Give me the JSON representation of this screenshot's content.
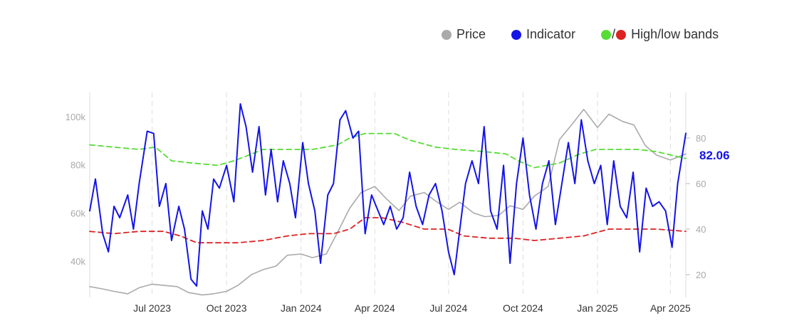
{
  "legend": {
    "price": "Price",
    "indicator": "Indicator",
    "bands_sep": "/",
    "bands": "High/low bands"
  },
  "colors": {
    "price": "#aaaaaa",
    "indicator": "#1414e6",
    "high_band": "#55dd33",
    "low_band": "#dd2222",
    "gridline": "#dddddd"
  },
  "chart_data": {
    "type": "line",
    "grid": "vertical dashed lines at x ticks",
    "legend_position": "top-right",
    "x_range": [
      "2023-04-15",
      "2025-04-20"
    ],
    "x_ticks": [
      {
        "date": "2023-07-01",
        "label": "Jul 2023"
      },
      {
        "date": "2023-10-01",
        "label": "Oct 2023"
      },
      {
        "date": "2024-01-01",
        "label": "Jan 2024"
      },
      {
        "date": "2024-04-01",
        "label": "Apr 2024"
      },
      {
        "date": "2024-07-01",
        "label": "Jul 2024"
      },
      {
        "date": "2024-10-01",
        "label": "Oct 2024"
      },
      {
        "date": "2025-01-01",
        "label": "Jan 2025"
      },
      {
        "date": "2025-04-01",
        "label": "Apr 2025"
      }
    ],
    "y_left": {
      "range": [
        25000,
        110000
      ],
      "ticks": [
        {
          "v": 40000,
          "label": "40k"
        },
        {
          "v": 60000,
          "label": "60k"
        },
        {
          "v": 80000,
          "label": "80k"
        },
        {
          "v": 100000,
          "label": "100k"
        }
      ]
    },
    "y_right": {
      "range": [
        10,
        100
      ],
      "ticks": [
        {
          "v": 20,
          "label": "20"
        },
        {
          "v": 40,
          "label": "40"
        },
        {
          "v": 60,
          "label": "60"
        },
        {
          "v": 80,
          "label": "80"
        }
      ]
    },
    "last_value_label": "82.06",
    "series": [
      {
        "name": "Price",
        "axis": "left",
        "style": "solid",
        "x": [
          "2023-04-15",
          "2023-05-01",
          "2023-05-15",
          "2023-06-01",
          "2023-06-15",
          "2023-07-01",
          "2023-07-15",
          "2023-08-01",
          "2023-08-15",
          "2023-09-01",
          "2023-09-15",
          "2023-10-01",
          "2023-10-15",
          "2023-11-01",
          "2023-11-15",
          "2023-12-01",
          "2023-12-15",
          "2024-01-01",
          "2024-01-15",
          "2024-02-01",
          "2024-02-15",
          "2024-03-01",
          "2024-03-15",
          "2024-04-01",
          "2024-04-15",
          "2024-05-01",
          "2024-05-15",
          "2024-06-01",
          "2024-06-15",
          "2024-07-01",
          "2024-07-15",
          "2024-08-01",
          "2024-08-15",
          "2024-09-01",
          "2024-09-15",
          "2024-10-01",
          "2024-10-15",
          "2024-11-01",
          "2024-11-15",
          "2024-12-01",
          "2024-12-15",
          "2025-01-01",
          "2025-01-15",
          "2025-02-01",
          "2025-02-15",
          "2025-03-01",
          "2025-03-15",
          "2025-04-01",
          "2025-04-20"
        ],
        "values": [
          29500,
          28500,
          27500,
          26500,
          29000,
          30500,
          30000,
          29500,
          27000,
          26000,
          26500,
          27500,
          30000,
          34500,
          36500,
          38000,
          42500,
          43000,
          41500,
          43000,
          52000,
          62000,
          68500,
          71000,
          66000,
          61000,
          67000,
          68500,
          65000,
          61500,
          64500,
          60000,
          58500,
          59000,
          63000,
          61500,
          67000,
          71000,
          90500,
          97000,
          103000,
          95500,
          101000,
          98000,
          96500,
          88000,
          84000,
          82000,
          84500
        ]
      },
      {
        "name": "Indicator",
        "axis": "right",
        "style": "solid",
        "x": [
          "2023-04-15",
          "2023-04-22",
          "2023-05-01",
          "2023-05-08",
          "2023-05-15",
          "2023-05-22",
          "2023-06-01",
          "2023-06-08",
          "2023-06-15",
          "2023-06-25",
          "2023-07-03",
          "2023-07-10",
          "2023-07-18",
          "2023-07-25",
          "2023-08-03",
          "2023-08-10",
          "2023-08-18",
          "2023-08-25",
          "2023-09-01",
          "2023-09-08",
          "2023-09-15",
          "2023-09-22",
          "2023-10-01",
          "2023-10-10",
          "2023-10-18",
          "2023-10-25",
          "2023-11-02",
          "2023-11-10",
          "2023-11-18",
          "2023-11-25",
          "2023-12-03",
          "2023-12-10",
          "2023-12-18",
          "2023-12-25",
          "2024-01-03",
          "2024-01-10",
          "2024-01-18",
          "2024-01-25",
          "2024-02-03",
          "2024-02-10",
          "2024-02-18",
          "2024-02-25",
          "2024-03-05",
          "2024-03-12",
          "2024-03-20",
          "2024-03-28",
          "2024-04-05",
          "2024-04-12",
          "2024-04-20",
          "2024-04-28",
          "2024-05-06",
          "2024-05-14",
          "2024-05-22",
          "2024-05-30",
          "2024-06-07",
          "2024-06-15",
          "2024-06-23",
          "2024-07-01",
          "2024-07-08",
          "2024-07-15",
          "2024-07-22",
          "2024-07-30",
          "2024-08-07",
          "2024-08-14",
          "2024-08-22",
          "2024-08-30",
          "2024-09-07",
          "2024-09-15",
          "2024-09-23",
          "2024-10-01",
          "2024-10-09",
          "2024-10-17",
          "2024-10-25",
          "2024-11-02",
          "2024-11-10",
          "2024-11-18",
          "2024-11-26",
          "2024-12-04",
          "2024-12-12",
          "2024-12-20",
          "2024-12-28",
          "2025-01-05",
          "2025-01-13",
          "2025-01-21",
          "2025-01-29",
          "2025-02-06",
          "2025-02-14",
          "2025-02-22",
          "2025-03-02",
          "2025-03-10",
          "2025-03-18",
          "2025-03-26",
          "2025-04-03",
          "2025-04-10",
          "2025-04-20"
        ],
        "values": [
          48,
          62,
          38,
          30,
          50,
          45,
          55,
          40,
          60,
          83,
          82,
          50,
          60,
          35,
          50,
          40,
          18,
          15,
          48,
          40,
          62,
          58,
          68,
          52,
          95,
          85,
          65,
          85,
          55,
          75,
          52,
          70,
          60,
          45,
          78,
          60,
          48,
          25,
          55,
          60,
          88,
          92,
          80,
          83,
          38,
          55,
          48,
          42,
          50,
          40,
          45,
          65,
          50,
          42,
          55,
          60,
          48,
          30,
          20,
          40,
          60,
          70,
          60,
          85,
          48,
          40,
          68,
          25,
          60,
          80,
          55,
          40,
          60,
          70,
          42,
          60,
          78,
          60,
          88,
          70,
          60,
          68,
          42,
          70,
          50,
          45,
          65,
          30,
          58,
          50,
          52,
          48,
          32,
          60,
          82.06
        ]
      },
      {
        "name": "High band",
        "axis": "right",
        "style": "dashed",
        "x": [
          "2023-04-15",
          "2023-05-15",
          "2023-06-15",
          "2023-07-05",
          "2023-07-25",
          "2023-08-20",
          "2023-09-20",
          "2023-10-10",
          "2023-10-25",
          "2023-11-15",
          "2023-12-15",
          "2024-01-15",
          "2024-02-15",
          "2024-03-01",
          "2024-03-20",
          "2024-04-10",
          "2024-04-25",
          "2024-05-15",
          "2024-06-15",
          "2024-07-10",
          "2024-08-15",
          "2024-09-10",
          "2024-09-25",
          "2024-10-15",
          "2024-11-15",
          "2024-12-10",
          "2024-12-30",
          "2025-01-20",
          "2025-02-20",
          "2025-03-15",
          "2025-04-20"
        ],
        "values": [
          77,
          76,
          75,
          76,
          70,
          69,
          68,
          70,
          72,
          75,
          75,
          75,
          77,
          80,
          82,
          82,
          82,
          79,
          76,
          75,
          74,
          73,
          70,
          67,
          69,
          73,
          75,
          75,
          75,
          74,
          71
        ]
      },
      {
        "name": "Low band",
        "axis": "right",
        "style": "dashed",
        "x": [
          "2023-04-15",
          "2023-05-15",
          "2023-06-15",
          "2023-07-15",
          "2023-08-05",
          "2023-08-25",
          "2023-09-15",
          "2023-10-15",
          "2023-11-15",
          "2023-12-15",
          "2024-01-10",
          "2024-02-10",
          "2024-03-01",
          "2024-03-20",
          "2024-04-10",
          "2024-05-05",
          "2024-06-01",
          "2024-06-30",
          "2024-07-20",
          "2024-08-20",
          "2024-09-20",
          "2024-10-15",
          "2024-11-15",
          "2024-12-15",
          "2025-01-15",
          "2025-02-15",
          "2025-03-15",
          "2025-04-20"
        ],
        "values": [
          39,
          38,
          39,
          39,
          37,
          34,
          34,
          34,
          35,
          37,
          38,
          38,
          40,
          45,
          45,
          43,
          40,
          40,
          37,
          36,
          36,
          35,
          36,
          37,
          40,
          40,
          40,
          39
        ]
      }
    ]
  }
}
